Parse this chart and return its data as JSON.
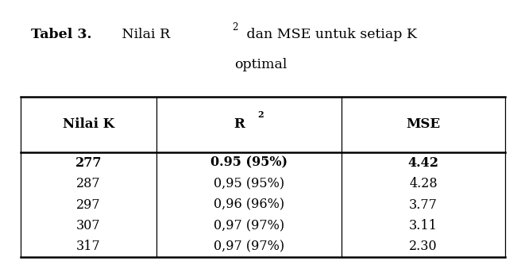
{
  "title_bold_part": "Tabel 3.",
  "title_normal_part": " Nilai R",
  "title_super": "2",
  "title_rest": " dan MSE untuk setiap K",
  "title_line2": "optimal",
  "col_headers": [
    "Nilai K",
    "R",
    "MSE"
  ],
  "rows": [
    {
      "nilai_k": "277",
      "r2": "0.95 (95%)",
      "mse": "4.42",
      "bold": true
    },
    {
      "nilai_k": "287",
      "r2": "0,95 (95%)",
      "mse": "4.28",
      "bold": false
    },
    {
      "nilai_k": "297",
      "r2": "0,96 (96%)",
      "mse": "3.77",
      "bold": false
    },
    {
      "nilai_k": "307",
      "r2": "0,97 (97%)",
      "mse": "3.11",
      "bold": false
    },
    {
      "nilai_k": "317",
      "r2": "0,97 (97%)",
      "mse": "2.30",
      "bold": false
    }
  ],
  "bg_color": "#ffffff",
  "text_color": "#000000",
  "line_color": "#000000",
  "font_size_title": 12.5,
  "font_size_header": 12,
  "font_size_data": 11.5
}
